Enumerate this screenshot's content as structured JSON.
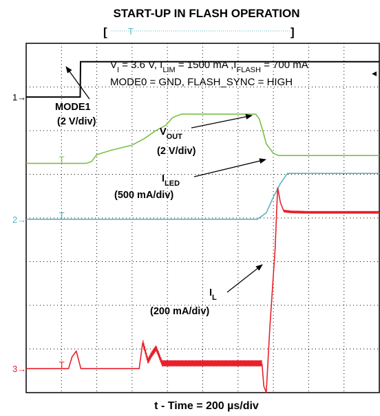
{
  "chart_data": {
    "type": "line",
    "title": "START-UP IN FLASH OPERATION",
    "xlabel": "t - Time =  200 µs/div",
    "x_div_count": 10,
    "y_div_count": 8,
    "x_range_divisions": [
      0,
      10
    ],
    "y_range_divisions": [
      0,
      8
    ],
    "grid": true,
    "conditions": [
      "V<sub>I</sub> = 3.6 V, I<sub>LIM</sub> = 1500 mA ,I<sub>FLASH</sub> = 700 mA",
      "MODE0 = GND, FLASH_SYNC = HIGH"
    ],
    "conditions_text": {
      "line1": "V",
      "line1_sub1": "I",
      "line1_b": " = 3.6 V, I",
      "line1_sub2": "LIM",
      "line1_c": " = 1500 mA ,I",
      "line1_sub3": "FLASH",
      "line1_d": " = 700 mA",
      "line2": "MODE0 = GND, FLASH_SYNC = HIGH"
    },
    "trigger_bracket": {
      "left": "[",
      "right": "]",
      "mark": "T"
    },
    "channel_markers": [
      {
        "label": "1",
        "color": "#000000"
      },
      {
        "label": "2",
        "color": "#5ab4bd"
      },
      {
        "label": "3",
        "color": "#e8202a"
      }
    ],
    "series": [
      {
        "name": "MODE1",
        "scale": "(2 V/div)",
        "color": "#000000",
        "note": "x and y in scope divisions (x 0-10 left to right, y 0-8 bottom to top)",
        "x": [
          0,
          1.53,
          1.54,
          10
        ],
        "y": [
          6.77,
          6.77,
          7.58,
          7.58
        ]
      },
      {
        "name": "V",
        "name_sub": "OUT",
        "scale": "(2 V/div)",
        "color": "#78c043",
        "x": [
          0,
          1.7,
          1.85,
          2.0,
          2.4,
          3.0,
          3.35,
          3.65,
          3.95,
          4.15,
          4.4,
          6.5,
          6.6,
          6.7,
          6.8,
          7.0,
          7.15,
          8.0,
          10
        ],
        "y": [
          5.25,
          5.25,
          5.29,
          5.45,
          5.55,
          5.67,
          5.82,
          5.99,
          6.12,
          6.3,
          6.38,
          6.38,
          6.27,
          6.0,
          5.7,
          5.48,
          5.43,
          5.43,
          5.43
        ]
      },
      {
        "name": "I",
        "name_sub": "LED",
        "scale": "(500 mA/div)",
        "color": "#5ab4bd",
        "x": [
          0,
          6.55,
          6.8,
          7.0,
          7.2,
          7.4,
          10
        ],
        "y": [
          3.97,
          3.97,
          4.12,
          4.48,
          4.79,
          5.02,
          5.02
        ]
      },
      {
        "name": "I",
        "name_sub": "L",
        "scale": "(200 mA/div)",
        "color": "#e8202a",
        "x": [
          0,
          1.2,
          1.3,
          1.42,
          1.55,
          3.2,
          3.3,
          3.45,
          3.55,
          3.68,
          3.85,
          6.68,
          6.73,
          6.8,
          6.9,
          7.05,
          7.12,
          7.2,
          7.3,
          7.5,
          8.0,
          10
        ],
        "y": [
          0.55,
          0.55,
          0.82,
          0.95,
          0.55,
          0.55,
          1.15,
          0.7,
          0.85,
          1.0,
          0.65,
          0.65,
          0.15,
          0.0,
          1.5,
          3.3,
          4.7,
          4.35,
          4.15,
          4.13,
          4.12,
          4.12
        ]
      }
    ],
    "noise_bands": [
      {
        "series": "I_L",
        "x_from": 3.3,
        "x_to": 6.68,
        "amplitude_div": 0.14
      },
      {
        "series": "I_L",
        "x_from": 7.3,
        "x_to": 10,
        "amplitude_div": 0.06
      }
    ]
  }
}
